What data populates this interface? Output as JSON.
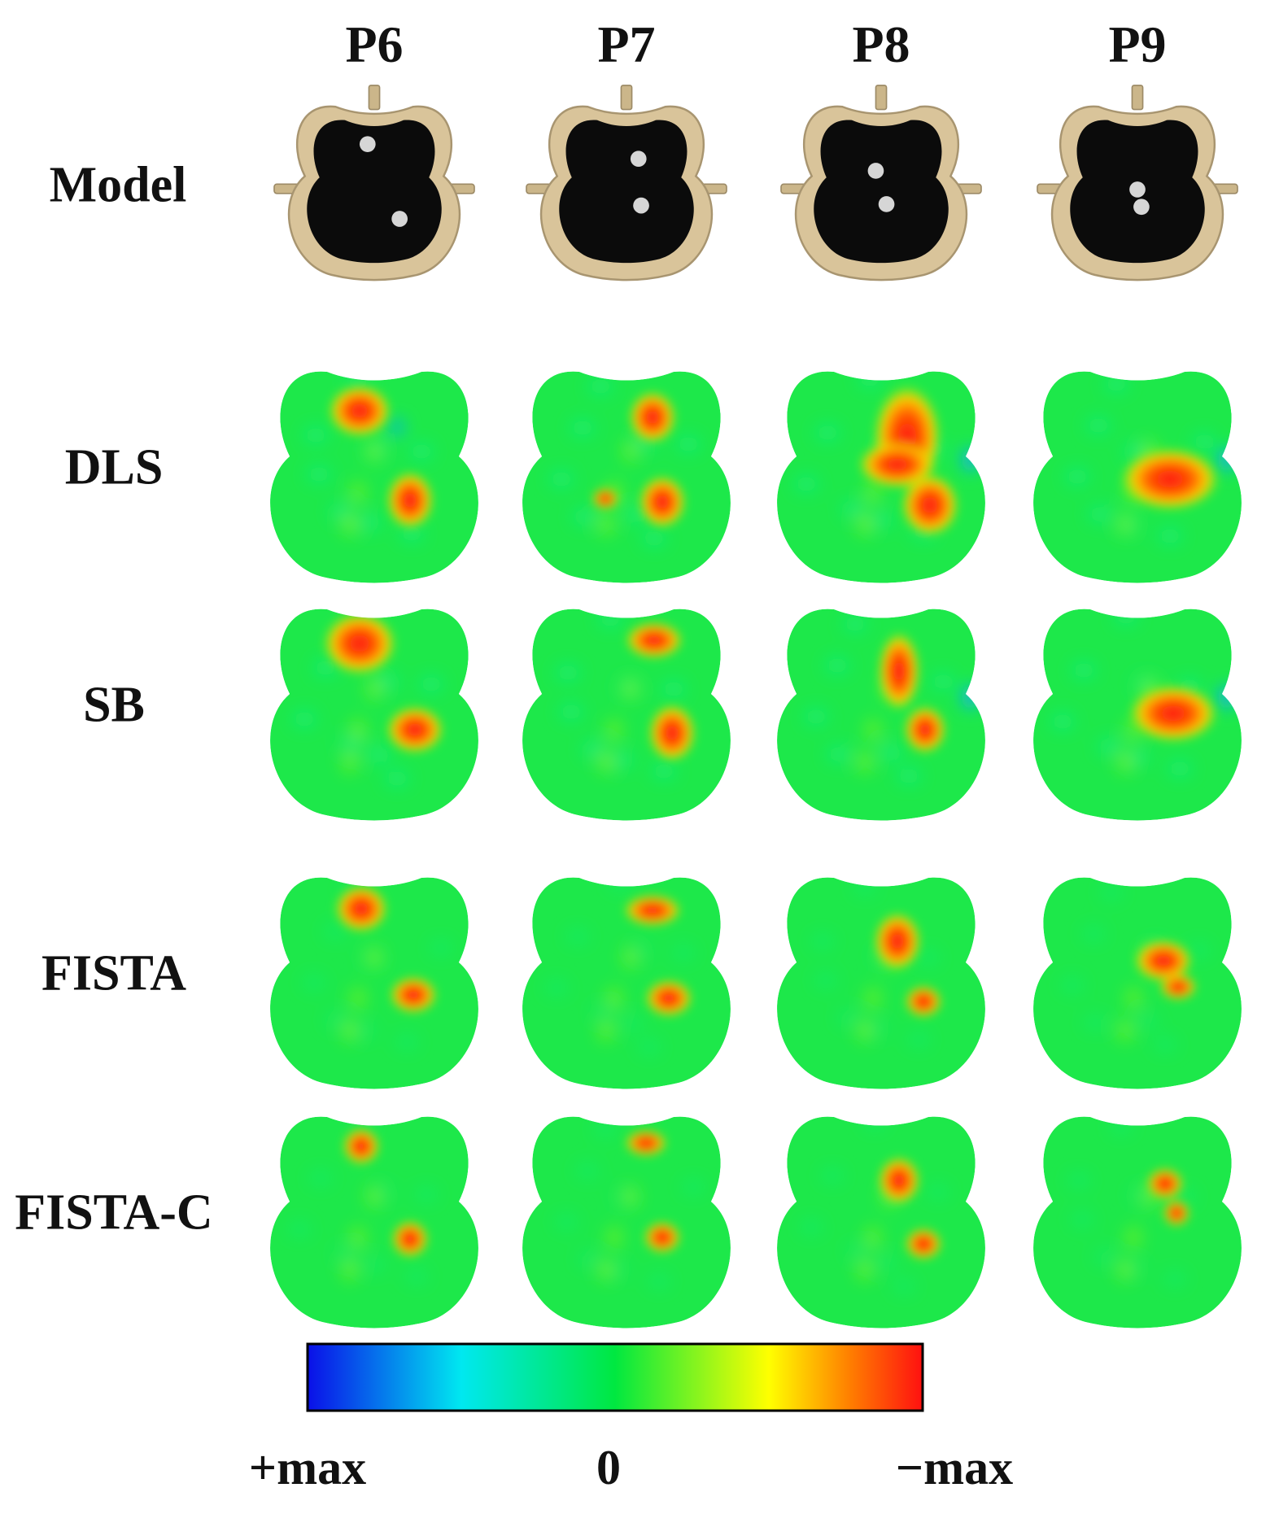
{
  "figure": {
    "columns": [
      "P6",
      "P7",
      "P8",
      "P9"
    ],
    "rows": [
      "Model",
      "DLS",
      "SB",
      "FISTA",
      "FISTA-C"
    ],
    "colorbar": {
      "left_label": "+max",
      "center_label": "0",
      "right_label": "−max",
      "colors": [
        "#0a10e8",
        "#00e8f0",
        "#00e840",
        "#ffff00",
        "#ff8000",
        "#ff1010"
      ]
    },
    "model_colors": {
      "shell": "#d9c49a",
      "interior": "#0b0b0b",
      "inclusion": "#d6d6d6"
    }
  }
}
